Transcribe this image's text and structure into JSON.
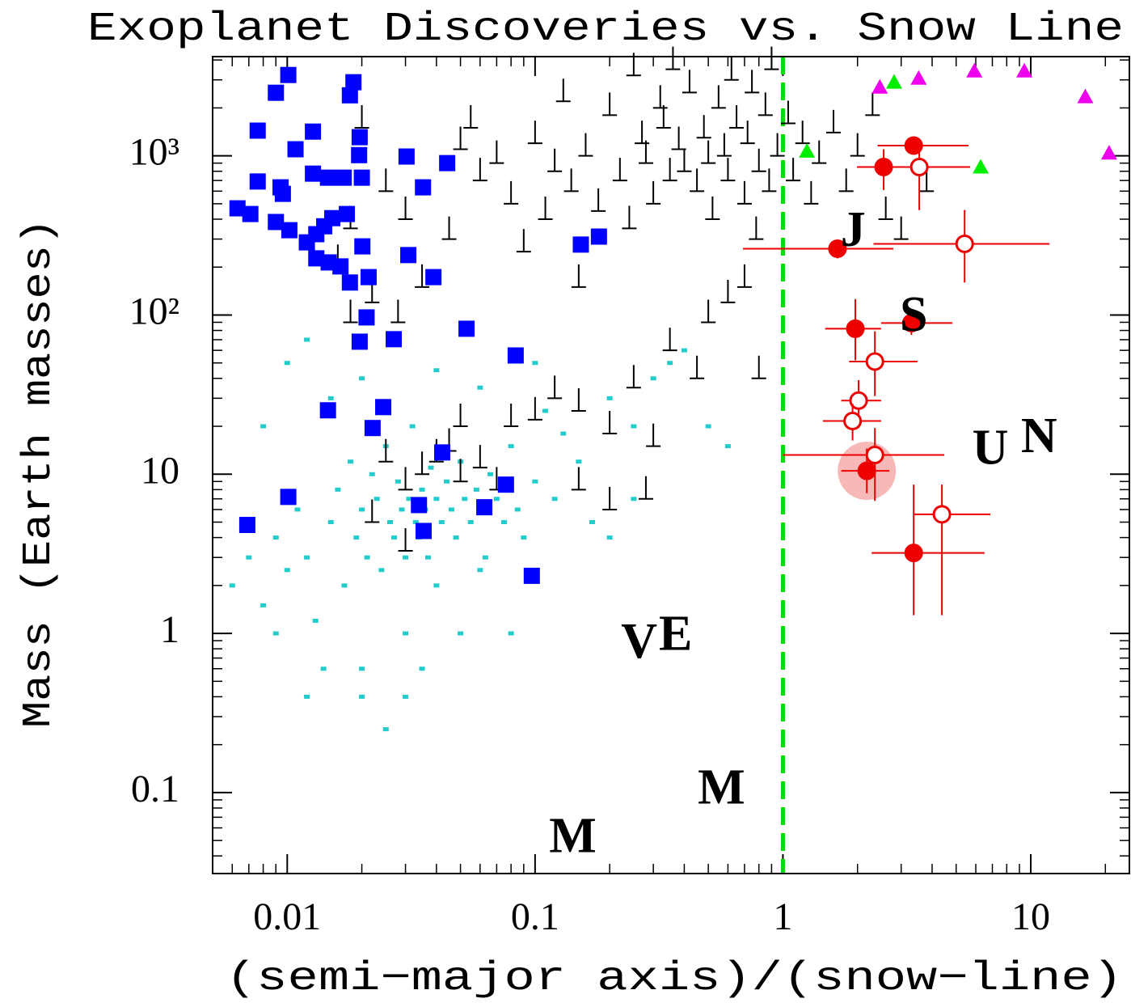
{
  "chart_data": {
    "type": "scatter",
    "title": "Exoplanet Discoveries vs. Snow Line",
    "xlabel": "(semi−major axis)/(snow−line)",
    "ylabel": "Mass (Earth masses)",
    "xscale": "log",
    "yscale": "log",
    "xlim": [
      0.005,
      25
    ],
    "ylim": [
      0.031,
      4200
    ],
    "xticks": [
      0.01,
      0.1,
      1,
      10
    ],
    "yticks": [
      0.1,
      1,
      10,
      {
        "value": 100,
        "label": "10²"
      },
      {
        "value": 1000,
        "label": "10³"
      }
    ],
    "grid": false,
    "vline": {
      "x": 1,
      "color": "#00dd00",
      "dash": true
    },
    "series": [
      {
        "marker": "small-square",
        "color": "#22cccc",
        "x": [
          0.006,
          0.007,
          0.008,
          0.009,
          0.01,
          0.011,
          0.012,
          0.013,
          0.014,
          0.015,
          0.016,
          0.017,
          0.018,
          0.019,
          0.02,
          0.021,
          0.022,
          0.023,
          0.024,
          0.025,
          0.026,
          0.027,
          0.028,
          0.029,
          0.03,
          0.031,
          0.032,
          0.033,
          0.034,
          0.035,
          0.036,
          0.037,
          0.038,
          0.04,
          0.042,
          0.044,
          0.046,
          0.048,
          0.05,
          0.052,
          0.055,
          0.058,
          0.06,
          0.063,
          0.066,
          0.07,
          0.075,
          0.08,
          0.085,
          0.09,
          0.1,
          0.11,
          0.12,
          0.13,
          0.15,
          0.17,
          0.2,
          0.25,
          0.3,
          0.35,
          0.4,
          0.5,
          0.6,
          0.2,
          0.25,
          0.03,
          0.05,
          0.08,
          0.012,
          0.02,
          0.03,
          0.025,
          0.04,
          0.06,
          0.035,
          0.02,
          0.009,
          0.015,
          0.01,
          0.008,
          0.012,
          0.02,
          0.04,
          0.06,
          0.1
        ],
        "y": [
          2,
          3,
          1.5,
          4,
          2.5,
          6,
          3,
          1.2,
          0.6,
          5,
          8,
          2,
          12,
          4,
          6,
          3,
          10,
          7,
          2.5,
          15,
          5,
          4,
          9,
          6,
          3,
          7,
          20,
          5,
          4,
          8,
          6,
          3,
          11,
          7,
          5,
          9,
          6,
          4,
          12,
          7,
          5,
          8,
          6,
          3,
          10,
          7,
          5,
          15,
          6,
          4,
          9,
          25,
          7,
          18,
          12,
          5,
          30,
          20,
          40,
          50,
          60,
          20,
          15,
          4,
          7,
          1,
          1,
          1,
          0.4,
          0.4,
          0.4,
          0.25,
          2,
          2.5,
          0.6,
          0.6,
          1,
          30,
          50,
          20,
          70,
          40,
          45,
          35,
          50
        ]
      },
      {
        "marker": "lower-limit",
        "color": "#000000",
        "x": [
          0.02,
          0.025,
          0.03,
          0.018,
          0.016,
          0.022,
          0.028,
          0.035,
          0.045,
          0.05,
          0.055,
          0.06,
          0.07,
          0.08,
          0.09,
          0.1,
          0.11,
          0.12,
          0.13,
          0.14,
          0.15,
          0.16,
          0.18,
          0.2,
          0.22,
          0.24,
          0.25,
          0.27,
          0.28,
          0.3,
          0.32,
          0.33,
          0.35,
          0.36,
          0.38,
          0.4,
          0.42,
          0.45,
          0.48,
          0.5,
          0.52,
          0.55,
          0.58,
          0.6,
          0.62,
          0.65,
          0.7,
          0.72,
          0.75,
          0.78,
          0.8,
          0.85,
          0.88,
          0.9,
          0.95,
          1.05,
          1.1,
          1.2,
          1.3,
          1.4,
          1.6,
          1.8,
          2.0,
          2.3,
          2.6,
          3.0,
          3.8,
          0.025,
          0.03,
          0.035,
          0.04,
          0.045,
          0.05,
          0.06,
          0.07,
          0.08,
          0.1,
          0.12,
          0.15,
          0.2,
          0.25,
          0.3,
          0.35,
          0.45,
          0.6,
          0.8,
          0.7,
          0.5,
          0.018,
          0.03,
          0.022,
          0.15,
          0.2,
          0.05,
          0.28
        ],
        "y": [
          1500,
          600,
          400,
          350,
          200,
          120,
          90,
          150,
          300,
          1100,
          1500,
          700,
          900,
          500,
          250,
          1200,
          400,
          800,
          2200,
          600,
          150,
          1000,
          450,
          1800,
          700,
          350,
          3200,
          1200,
          900,
          500,
          2000,
          1500,
          700,
          3500,
          1100,
          800,
          2500,
          600,
          1300,
          900,
          400,
          2000,
          1000,
          700,
          3000,
          1500,
          500,
          1200,
          2500,
          300,
          800,
          1800,
          600,
          3500,
          1000,
          1600,
          700,
          1200,
          500,
          900,
          1400,
          600,
          1000,
          1800,
          400,
          300,
          600,
          12,
          8,
          10,
          12,
          14,
          9,
          11,
          8,
          20,
          22,
          30,
          25,
          18,
          35,
          15,
          60,
          40,
          120,
          40,
          150,
          90,
          90,
          3.3,
          5,
          8,
          6,
          20,
          7
        ]
      },
      {
        "marker": "square",
        "color": "#0000ff",
        "x": [
          0.0101,
          0.009,
          0.0185,
          0.0179,
          0.0076,
          0.0127,
          0.0196,
          0.0108,
          0.0195,
          0.0303,
          0.0442,
          0.0076,
          0.0094,
          0.0096,
          0.0127,
          0.0146,
          0.0169,
          0.02,
          0.0353,
          0.0063,
          0.0071,
          0.009,
          0.0102,
          0.012,
          0.0131,
          0.0141,
          0.0152,
          0.0174,
          0.0201,
          0.0131,
          0.0147,
          0.0164,
          0.0179,
          0.0213,
          0.0308,
          0.0389,
          0.153,
          0.181,
          0.0209,
          0.0196,
          0.0529,
          0.0269,
          0.0835,
          0.0244,
          0.0146,
          0.0221,
          0.0422,
          0.0101,
          0.0763,
          0.034,
          0.0624,
          0.0069,
          0.0355,
          0.097
        ],
        "y": [
          3220,
          2490,
          2900,
          2400,
          1440,
          1420,
          1310,
          1100,
          1010,
          990,
          900,
          690,
          634,
          577,
          773,
          729,
          729,
          729,
          634,
          468,
          431,
          384,
          341,
          286,
          322,
          361,
          406,
          431,
          270,
          227,
          214,
          202,
          160,
          173,
          238,
          173,
          277,
          311,
          96.6,
          68,
          82,
          70.5,
          55.7,
          26.4,
          25.2,
          19.5,
          13.7,
          7.2,
          8.6,
          6.4,
          6.2,
          4.8,
          4.4,
          2.3
        ]
      },
      {
        "marker": "triangle",
        "color": "#00ee00",
        "x": [
          1.25,
          2.81,
          6.28
        ],
        "y": [
          1070,
          2900,
          850
        ]
      },
      {
        "marker": "triangle",
        "color": "#ee00ee",
        "x": [
          2.46,
          3.53,
          5.92,
          9.42,
          16.6,
          20.7
        ],
        "y": [
          2700,
          3070,
          3410,
          3410,
          2350,
          1040
        ]
      },
      {
        "marker": "circle",
        "color": "#ee0000",
        "filled": true,
        "x": [
          3.37,
          2.55,
          1.66,
          1.96,
          3.3,
          2.18,
          3.37
        ],
        "y": [
          1160,
          850,
          261,
          82,
          89,
          10.5,
          3.2
        ],
        "x_low": [
          2.41,
          1.99,
          0.69,
          1.48,
          2.49,
          1.72,
          2.28
        ],
        "x_high": [
          5.61,
          3.49,
          2.79,
          2.49,
          4.83,
          2.69,
          6.51
        ],
        "y_low": [
          1050,
          610,
          227,
          52,
          75,
          7.6,
          1.3
        ],
        "y_high": [
          1280,
          1100,
          286,
          126,
          106,
          14.5,
          8.6
        ]
      },
      {
        "marker": "circle",
        "color": "#ee0000",
        "filled": false,
        "x": [
          3.55,
          5.41,
          2.35,
          2.02,
          1.91,
          2.35,
          4.38
        ],
        "y": [
          850,
          280,
          51,
          29,
          21.6,
          13.2,
          5.6
        ],
        "x_low": [
          2.59,
          2.32,
          1.85,
          1.72,
          1.45,
          1.0,
          3.37
        ],
        "x_high": [
          5.69,
          11.9,
          3.49,
          2.49,
          2.49,
          4.48,
          6.87
        ],
        "y_low": [
          456,
          160,
          31,
          19.5,
          16.3,
          6.8,
          1.3
        ],
        "y_high": [
          1160,
          457,
          79,
          39,
          27.7,
          19.5,
          8.6
        ]
      }
    ],
    "highlight": {
      "x": 2.18,
      "y": 10.5,
      "color": "#f4a0a0"
    },
    "solar_system": {
      "labels": [
        "M",
        "V",
        "E",
        "M",
        "J",
        "S",
        "U",
        "N"
      ],
      "x": [
        0.142,
        0.263,
        0.369,
        0.565,
        1.92,
        3.37,
        6.87,
        10.8
      ],
      "y": [
        0.05,
        0.83,
        0.93,
        0.101,
        322,
        94,
        13.7,
        16.3
      ]
    }
  }
}
